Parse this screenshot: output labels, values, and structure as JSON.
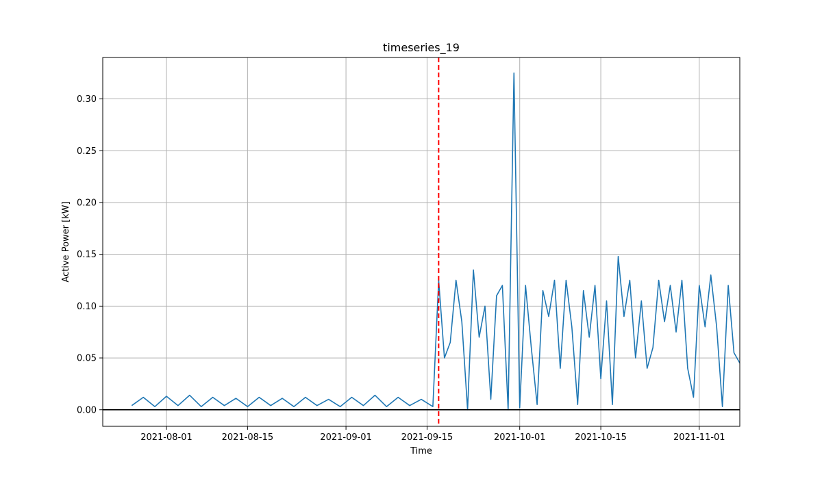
{
  "chart_data": {
    "type": "line",
    "title": "timeseries_19",
    "xlabel": "Time",
    "ylabel": "Active Power [kW]",
    "xlim": [
      "2021-07-21",
      "2021-11-08"
    ],
    "ylim": [
      -0.016,
      0.34
    ],
    "x_ticks": [
      "2021-08-01",
      "2021-08-15",
      "2021-09-01",
      "2021-09-15",
      "2021-10-01",
      "2021-10-15",
      "2021-11-01"
    ],
    "y_ticks": [
      0.0,
      0.05,
      0.1,
      0.15,
      0.2,
      0.25,
      0.3
    ],
    "y_tick_labels": [
      "0.00",
      "0.05",
      "0.10",
      "0.15",
      "0.20",
      "0.25",
      "0.30"
    ],
    "grid": true,
    "colors": {
      "series": "#1f77b4",
      "marker_line": "#ff0000",
      "zero_line": "#000000",
      "grid": "#b0b0b0"
    },
    "series": [
      {
        "values": [
          [
            "2021-07-26",
            0.004
          ],
          [
            "2021-07-28",
            0.012
          ],
          [
            "2021-07-30",
            0.003
          ],
          [
            "2021-08-01",
            0.013
          ],
          [
            "2021-08-03",
            0.004
          ],
          [
            "2021-08-05",
            0.014
          ],
          [
            "2021-08-07",
            0.003
          ],
          [
            "2021-08-09",
            0.012
          ],
          [
            "2021-08-11",
            0.004
          ],
          [
            "2021-08-13",
            0.011
          ],
          [
            "2021-08-15",
            0.003
          ],
          [
            "2021-08-17",
            0.012
          ],
          [
            "2021-08-19",
            0.004
          ],
          [
            "2021-08-21",
            0.011
          ],
          [
            "2021-08-23",
            0.003
          ],
          [
            "2021-08-25",
            0.012
          ],
          [
            "2021-08-27",
            0.004
          ],
          [
            "2021-08-29",
            0.01
          ],
          [
            "2021-08-31",
            0.003
          ],
          [
            "2021-09-02",
            0.012
          ],
          [
            "2021-09-04",
            0.004
          ],
          [
            "2021-09-06",
            0.014
          ],
          [
            "2021-09-08",
            0.003
          ],
          [
            "2021-09-10",
            0.012
          ],
          [
            "2021-09-12",
            0.004
          ],
          [
            "2021-09-14",
            0.01
          ],
          [
            "2021-09-16",
            0.003
          ],
          [
            "2021-09-17",
            0.125
          ],
          [
            "2021-09-18",
            0.05
          ],
          [
            "2021-09-19",
            0.065
          ],
          [
            "2021-09-20",
            0.125
          ],
          [
            "2021-09-21",
            0.085
          ],
          [
            "2021-09-22",
            0.0
          ],
          [
            "2021-09-23",
            0.135
          ],
          [
            "2021-09-24",
            0.07
          ],
          [
            "2021-09-25",
            0.1
          ],
          [
            "2021-09-26",
            0.01
          ],
          [
            "2021-09-27",
            0.11
          ],
          [
            "2021-09-28",
            0.12
          ],
          [
            "2021-09-29",
            0.0
          ],
          [
            "2021-09-30",
            0.325
          ],
          [
            "2021-10-01",
            0.002
          ],
          [
            "2021-10-02",
            0.12
          ],
          [
            "2021-10-03",
            0.06
          ],
          [
            "2021-10-04",
            0.005
          ],
          [
            "2021-10-05",
            0.115
          ],
          [
            "2021-10-06",
            0.09
          ],
          [
            "2021-10-07",
            0.125
          ],
          [
            "2021-10-08",
            0.04
          ],
          [
            "2021-10-09",
            0.125
          ],
          [
            "2021-10-10",
            0.08
          ],
          [
            "2021-10-11",
            0.005
          ],
          [
            "2021-10-12",
            0.115
          ],
          [
            "2021-10-13",
            0.07
          ],
          [
            "2021-10-14",
            0.12
          ],
          [
            "2021-10-15",
            0.03
          ],
          [
            "2021-10-16",
            0.105
          ],
          [
            "2021-10-17",
            0.005
          ],
          [
            "2021-10-18",
            0.148
          ],
          [
            "2021-10-19",
            0.09
          ],
          [
            "2021-10-20",
            0.125
          ],
          [
            "2021-10-21",
            0.05
          ],
          [
            "2021-10-22",
            0.105
          ],
          [
            "2021-10-23",
            0.04
          ],
          [
            "2021-10-24",
            0.06
          ],
          [
            "2021-10-25",
            0.125
          ],
          [
            "2021-10-26",
            0.085
          ],
          [
            "2021-10-27",
            0.12
          ],
          [
            "2021-10-28",
            0.075
          ],
          [
            "2021-10-29",
            0.125
          ],
          [
            "2021-10-30",
            0.04
          ],
          [
            "2021-10-31",
            0.012
          ],
          [
            "2021-11-01",
            0.12
          ],
          [
            "2021-11-02",
            0.08
          ],
          [
            "2021-11-03",
            0.13
          ],
          [
            "2021-11-04",
            0.08
          ],
          [
            "2021-11-05",
            0.003
          ],
          [
            "2021-11-06",
            0.12
          ],
          [
            "2021-11-07",
            0.055
          ],
          [
            "2021-11-08",
            0.045
          ]
        ]
      }
    ],
    "reference_lines": [
      {
        "orientation": "vertical",
        "x": "2021-09-17",
        "style": "dashed",
        "color": "#ff0000"
      },
      {
        "orientation": "horizontal",
        "y": 0.0,
        "style": "solid",
        "color": "#000000"
      }
    ]
  }
}
